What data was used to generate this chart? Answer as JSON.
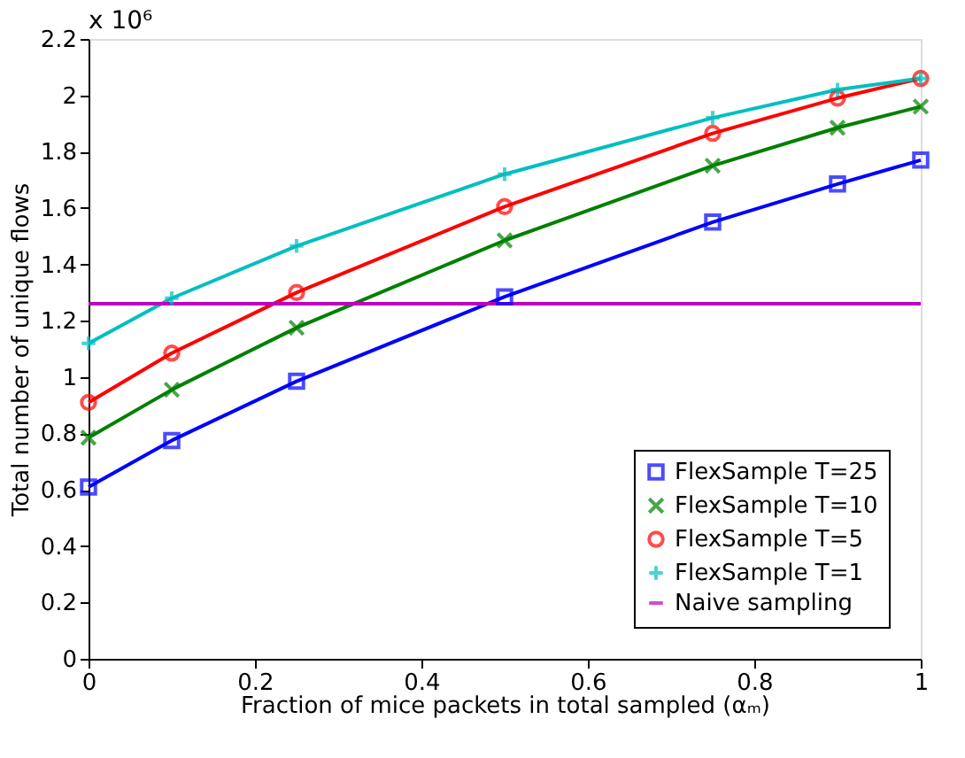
{
  "chart_data": {
    "type": "line",
    "xlabel": "Fraction of mice packets in total sampled (αₘ)",
    "ylabel": "Total number of unique flows",
    "annotations": [
      "x 10⁶"
    ],
    "x": [
      0,
      0.1,
      0.25,
      0.5,
      0.75,
      0.9,
      1
    ],
    "series": [
      {
        "name": "FlexSample T=25",
        "color": "#0000ff",
        "marker": "square",
        "values": [
          0.61,
          0.775,
          0.985,
          1.285,
          1.55,
          1.685,
          1.77
        ]
      },
      {
        "name": "FlexSample T=10",
        "color": "#008000",
        "marker": "cross",
        "values": [
          0.785,
          0.955,
          1.175,
          1.485,
          1.75,
          1.885,
          1.96
        ]
      },
      {
        "name": "FlexSample T=5",
        "color": "#ff0000",
        "marker": "circle",
        "values": [
          0.91,
          1.085,
          1.3,
          1.605,
          1.865,
          1.99,
          2.06
        ]
      },
      {
        "name": "FlexSample T=1",
        "color": "#00bfbf",
        "marker": "plus",
        "values": [
          1.12,
          1.28,
          1.465,
          1.72,
          1.92,
          2.02,
          2.06
        ]
      },
      {
        "name": "Naive sampling",
        "color": "#bf00bf",
        "marker": "none",
        "x": [
          0,
          1
        ],
        "values": [
          1.26,
          1.26
        ]
      }
    ],
    "xlim": [
      0,
      1
    ],
    "xticks": [
      0,
      0.2,
      0.4,
      0.6,
      0.8,
      1
    ],
    "ylim": [
      0,
      2.2
    ],
    "yticks": [
      0,
      0.2,
      0.4,
      0.6,
      0.8,
      1,
      1.2,
      1.4,
      1.6,
      1.8,
      2,
      2.2
    ],
    "grid": false,
    "legend": "bottom right"
  }
}
